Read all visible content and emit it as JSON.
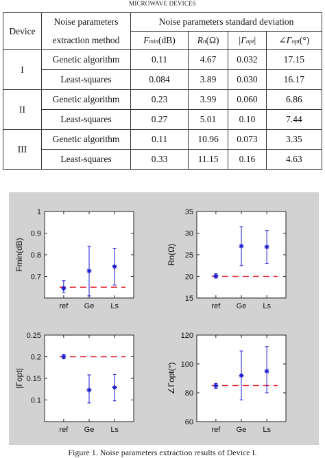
{
  "header_caption": "MICROWAVE DEVICES",
  "table": {
    "col_device": "Device",
    "col_method_line1": "Noise parameters",
    "col_method_line2": "extraction method",
    "col_std": "Noise parameters standard deviation",
    "sub_fmin": "F",
    "sub_fmin_sub": "min",
    "sub_fmin_unit": "(dB)",
    "sub_rn": "R",
    "sub_rn_sub": "n",
    "sub_rn_unit": "(Ω)",
    "sub_gopt_mag": "|Γ",
    "sub_gopt_mag_sub": "opt",
    "sub_gopt_mag_end": "|",
    "sub_gopt_ang": "∠Γ",
    "sub_gopt_ang_sub": "opt",
    "sub_gopt_ang_unit": "(°)",
    "groups": [
      {
        "device": "I",
        "rows": [
          {
            "method": "Genetic algorithm",
            "v": [
              "0.11",
              "4.67",
              "0.032",
              "17.15"
            ]
          },
          {
            "method": "Least-squares",
            "v": [
              "0.084",
              "3.89",
              "0.030",
              "16.17"
            ]
          }
        ]
      },
      {
        "device": "II",
        "rows": [
          {
            "method": "Genetic algorithm",
            "v": [
              "0.23",
              "3.99",
              "0.060",
              "6.86"
            ]
          },
          {
            "method": "Least-squares",
            "v": [
              "0.27",
              "5.01",
              "0.10",
              "7.44"
            ]
          }
        ]
      },
      {
        "device": "III",
        "rows": [
          {
            "method": "Genetic algorithm",
            "v": [
              "0.11",
              "10.96",
              "0.073",
              "3.35"
            ]
          },
          {
            "method": "Least-squares",
            "v": [
              "0.33",
              "11.15",
              "0.16",
              "4.63"
            ]
          }
        ]
      }
    ]
  },
  "chart_data": [
    {
      "type": "scatter",
      "ylabel": "Fmin(dB)",
      "categories": [
        "ref",
        "Ge",
        "Ls"
      ],
      "ylim": [
        0.6,
        1
      ],
      "yticks": [
        "0.7",
        "0.8",
        "0.9",
        "1"
      ],
      "ref_line": 0.65,
      "points": [
        {
          "x": "ref",
          "y": 0.645,
          "lo": 0.625,
          "hi": 0.68
        },
        {
          "x": "Ge",
          "y": 0.725,
          "lo": 0.61,
          "hi": 0.84
        },
        {
          "x": "Ls",
          "y": 0.745,
          "lo": 0.66,
          "hi": 0.83
        }
      ],
      "colors": {
        "line": "#e0202a",
        "marker": "#1818d0"
      }
    },
    {
      "type": "scatter",
      "ylabel": "Rn(Ω)",
      "categories": [
        "ref",
        "Ge",
        "Ls"
      ],
      "ylim": [
        15,
        35
      ],
      "yticks": [
        "15",
        "20",
        "25",
        "30",
        "35"
      ],
      "ref_line": 20,
      "points": [
        {
          "x": "ref",
          "y": 20.1,
          "lo": 19.6,
          "hi": 20.6
        },
        {
          "x": "Ge",
          "y": 27.0,
          "lo": 22.5,
          "hi": 31.5
        },
        {
          "x": "Ls",
          "y": 26.8,
          "lo": 23.0,
          "hi": 30.6
        }
      ],
      "colors": {
        "line": "#e0202a",
        "marker": "#1818d0"
      }
    },
    {
      "type": "scatter",
      "ylabel": "|Γopt|",
      "categories": [
        "ref",
        "Ge",
        "Ls"
      ],
      "ylim": [
        0.05,
        0.25
      ],
      "yticks": [
        "0.1",
        "0.15",
        "0.2",
        "0.25"
      ],
      "ref_line": 0.2,
      "points": [
        {
          "x": "ref",
          "y": 0.2,
          "lo": 0.195,
          "hi": 0.205
        },
        {
          "x": "Ge",
          "y": 0.123,
          "lo": 0.093,
          "hi": 0.158
        },
        {
          "x": "Ls",
          "y": 0.129,
          "lo": 0.098,
          "hi": 0.159
        }
      ],
      "colors": {
        "line": "#e0202a",
        "marker": "#1818d0"
      }
    },
    {
      "type": "scatter",
      "ylabel": "∠Γopt(°)",
      "categories": [
        "ref",
        "Ge",
        "Ls"
      ],
      "ylim": [
        60,
        120
      ],
      "yticks": [
        "60",
        "80",
        "100",
        "120"
      ],
      "ref_line": 85,
      "points": [
        {
          "x": "ref",
          "y": 84.8,
          "lo": 83,
          "hi": 86.5
        },
        {
          "x": "Ge",
          "y": 92,
          "lo": 75,
          "hi": 109
        },
        {
          "x": "Ls",
          "y": 95,
          "lo": 80,
          "hi": 112
        }
      ],
      "colors": {
        "line": "#e0202a",
        "marker": "#1818d0"
      }
    }
  ],
  "figure_caption": "Figure 1. Noise parameters extraction results of Device I."
}
